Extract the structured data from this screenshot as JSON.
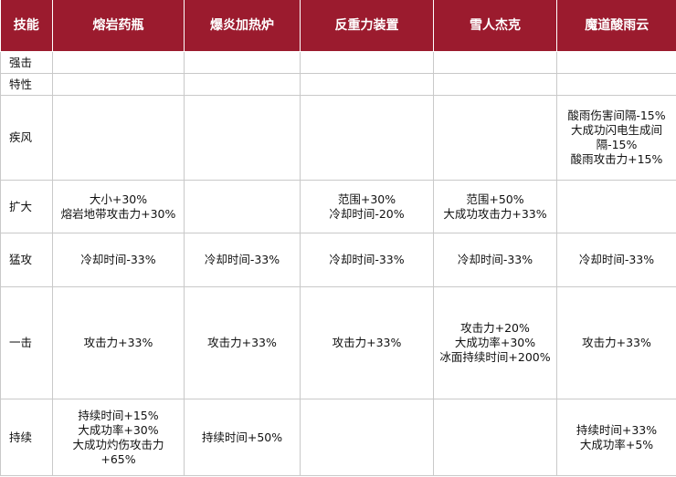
{
  "table": {
    "headers": [
      "技能",
      "熔岩药瓶",
      "爆炎加热炉",
      "反重力装置",
      "雪人杰克",
      "魔道酸雨云"
    ],
    "rows": [
      {
        "label": "强击",
        "cells": [
          "",
          "",
          "",
          "",
          ""
        ]
      },
      {
        "label": "特性",
        "cells": [
          "",
          "",
          "",
          "",
          ""
        ]
      },
      {
        "label": "疾风",
        "cells": [
          "",
          "",
          "",
          "",
          "酸雨伤害间隔-15%\n大成功闪电生成间\n隔-15%\n酸雨攻击力+15%"
        ]
      },
      {
        "label": "扩大",
        "cells": [
          "大小+30%\n熔岩地带攻击力+30%",
          "",
          "范围+30%\n冷却时间-20%",
          "范围+50%\n大成功攻击力+33%",
          ""
        ]
      },
      {
        "label": "猛攻",
        "cells": [
          "冷却时间-33%",
          "冷却时间-33%",
          "冷却时间-33%",
          "冷却时间-33%",
          "冷却时间-33%"
        ]
      },
      {
        "label": "一击",
        "cells": [
          "攻击力+33%",
          "攻击力+33%",
          "攻击力+33%",
          "攻击力+20%\n大成功率+30%\n冰面持续时间+200%",
          "攻击力+33%"
        ]
      },
      {
        "label": "持续",
        "cells": [
          "持续时间+15%\n大成功率+30%\n大成功灼伤攻击力\n+65%",
          "持续时间+50%",
          "",
          "",
          "持续时间+33%\n大成功率+5%"
        ]
      }
    ]
  }
}
